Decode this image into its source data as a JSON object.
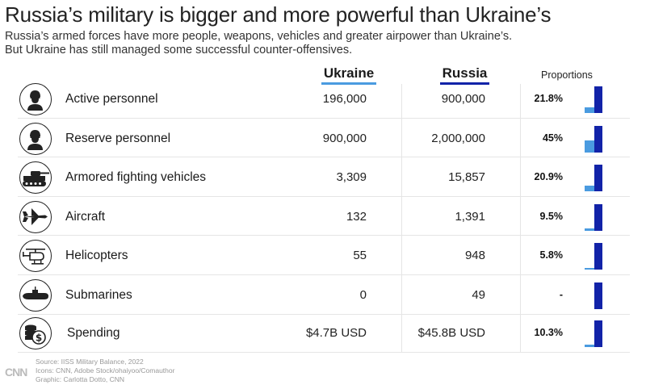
{
  "title": "Russia’s military is bigger and more powerful than Ukraine’s",
  "subtitle_lines": [
    "Russia’s armed forces have more people, weapons, vehicles and greater airpower than Ukraine’s.",
    "But Ukraine has still managed some successful counter-offensives."
  ],
  "colors": {
    "ukraine": "#4a9be0",
    "russia": "#1223a8",
    "text": "#111111",
    "rule": "#e5e5e5"
  },
  "columns": {
    "ukraine": "Ukraine",
    "russia": "Russia",
    "proportions": "Proportions"
  },
  "chart_data": {
    "type": "table",
    "columns": [
      "",
      "Ukraine",
      "Russia",
      "Proportions"
    ],
    "rows": [
      {
        "label": "Active personnel",
        "icon": "soldier-icon",
        "ukraine": "196,000",
        "russia": "900,000",
        "proportion": "21.8%",
        "proportion_value": 0.218
      },
      {
        "label": "Reserve personnel",
        "icon": "soldier-icon",
        "ukraine": "900,000",
        "russia": "2,000,000",
        "proportion": "45%",
        "proportion_value": 0.45
      },
      {
        "label": "Armored fighting vehicles",
        "icon": "tank-icon",
        "ukraine": "3,309",
        "russia": "15,857",
        "proportion": "20.9%",
        "proportion_value": 0.209
      },
      {
        "label": "Aircraft",
        "icon": "jet-icon",
        "ukraine": "132",
        "russia": "1,391",
        "proportion": "9.5%",
        "proportion_value": 0.095
      },
      {
        "label": "Helicopters",
        "icon": "helicopter-icon",
        "ukraine": "55",
        "russia": "948",
        "proportion": "5.8%",
        "proportion_value": 0.058
      },
      {
        "label": "Submarines",
        "icon": "submarine-icon",
        "ukraine": "0",
        "russia": "49",
        "proportion": "-",
        "proportion_value": 0
      },
      {
        "label": "Spending",
        "icon": "money-icon",
        "ukraine": "$4.7B USD",
        "russia": "$45.8B USD",
        "proportion": "10.3%",
        "proportion_value": 0.103
      }
    ]
  },
  "source_lines": [
    "Source:  IISS Military Balance, 2022",
    "Icons: CNN, Adobe Stock/ohaiyoo/Comauthor",
    "Graphic: Carlotta Dotto, CNN"
  ],
  "logo": "CNN"
}
